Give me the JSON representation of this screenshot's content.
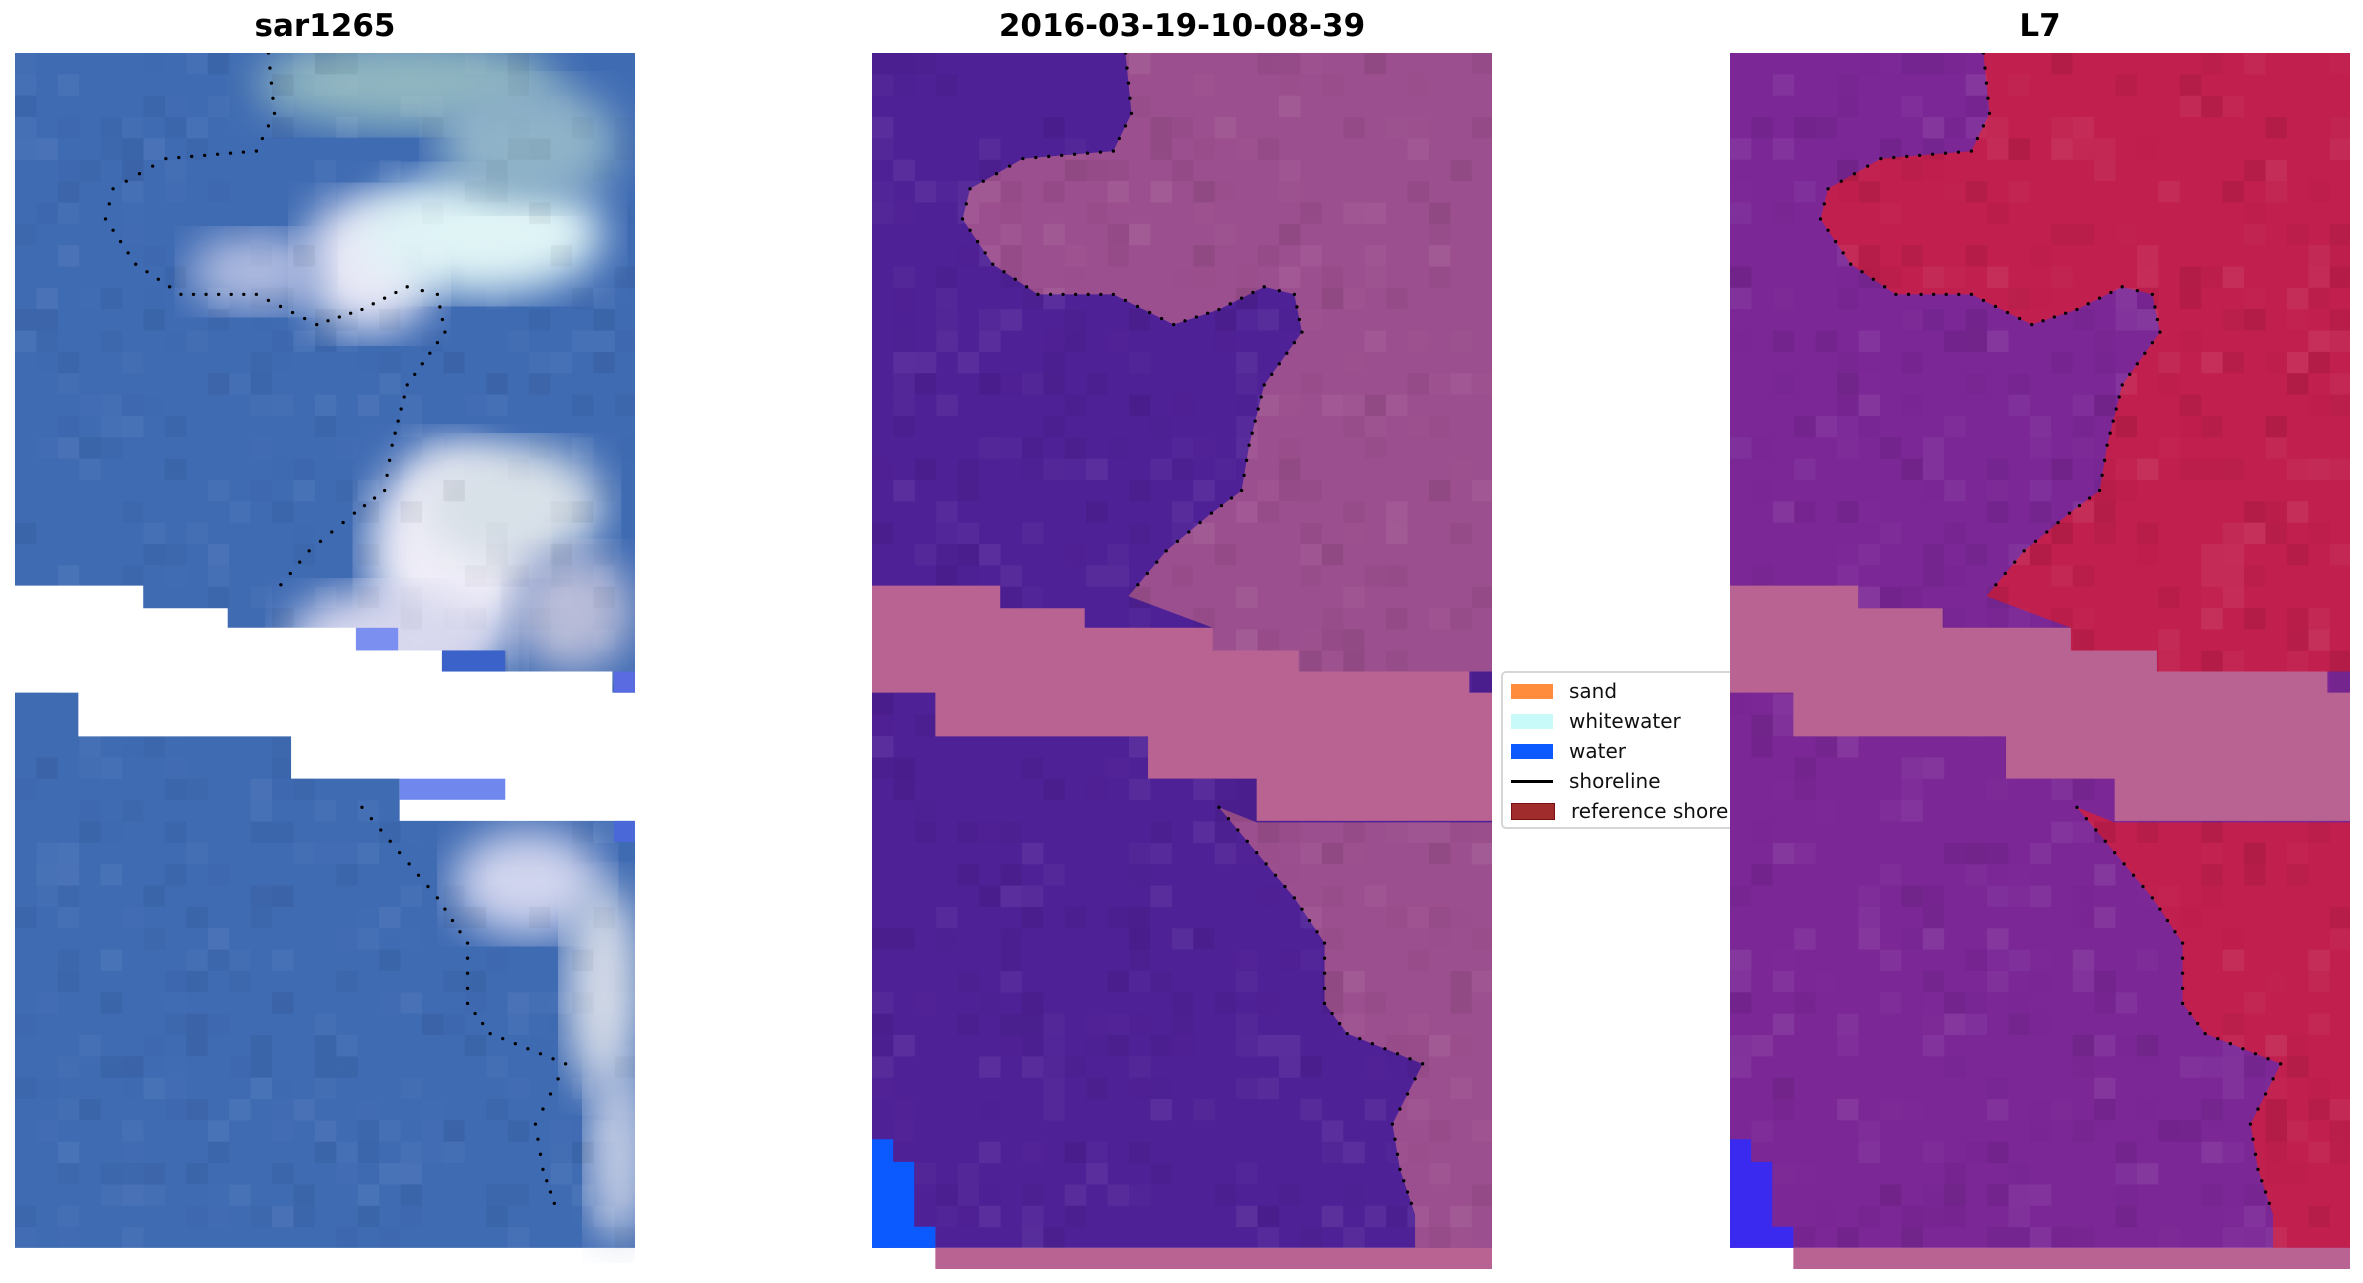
{
  "panels": [
    {
      "title": "sar1265",
      "kind": "rgb"
    },
    {
      "title": "2016-03-19-10-08-39",
      "kind": "classified"
    },
    {
      "title": "L7",
      "kind": "index"
    }
  ],
  "legend": {
    "items": [
      {
        "label": "sand",
        "color": "#ff8c3c",
        "type": "patch"
      },
      {
        "label": "whitewater",
        "color": "#c8fafa",
        "type": "patch"
      },
      {
        "label": "water",
        "color": "#0a5aff",
        "type": "patch"
      },
      {
        "label": "shoreline",
        "color": "#000000",
        "type": "line"
      },
      {
        "label": "reference shore",
        "color": "#a02c2c",
        "type": "patch"
      }
    ]
  },
  "colors": {
    "sar_water": "#3f6bb3",
    "class_water_dark": "#4f2196",
    "class_sand_pink": "#9c4f8e",
    "nodata_band": "#b86391",
    "index_purple": "#7b2796",
    "index_red": "#c11f4d"
  }
}
